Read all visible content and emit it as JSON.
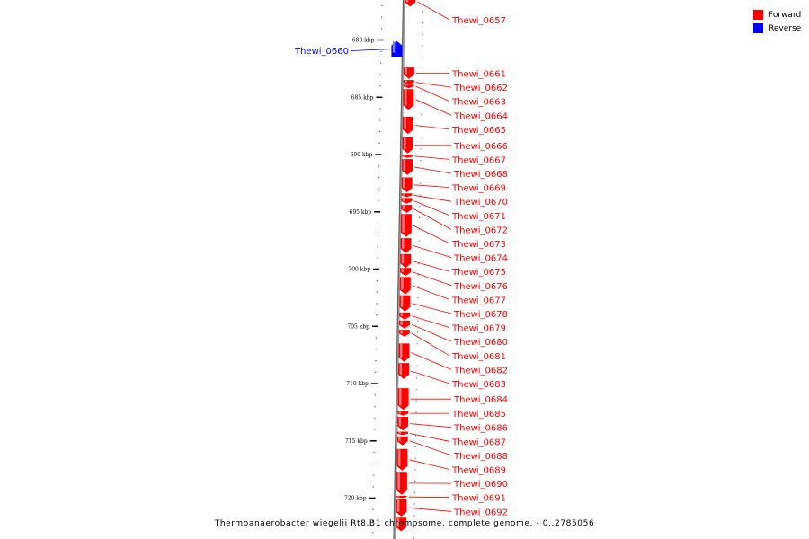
{
  "caption": "Thermoanaerobacter wiegelii Rt8.B1 chromosome, complete genome. - 0..2785056",
  "legend": [
    {
      "label": "Forward",
      "color": "#ff0000"
    },
    {
      "label": "Reverse",
      "color": "#0000ff"
    }
  ],
  "colors": {
    "forward": "#ff0000",
    "reverse": "#0000ff",
    "leader_forward": "#ff0000",
    "leader_reverse": "#0000ff"
  },
  "ticks": [
    {
      "kbp": 680,
      "label": "680 kbp"
    },
    {
      "kbp": 685,
      "label": "685 kbp"
    },
    {
      "kbp": 690,
      "label": "690 kbp"
    },
    {
      "kbp": 695,
      "label": "695 kbp"
    },
    {
      "kbp": 700,
      "label": "700 kbp"
    },
    {
      "kbp": 705,
      "label": "705 kbp"
    },
    {
      "kbp": 710,
      "label": "710 kbp"
    },
    {
      "kbp": 715,
      "label": "715 kbp"
    },
    {
      "kbp": 720,
      "label": "720 kbp"
    }
  ],
  "genes": [
    {
      "name": "Thewi_0657",
      "strand": "forward",
      "start_kbp": 676.2,
      "end_kbp": 677.1
    },
    {
      "name": "Thewi_0660",
      "strand": "reverse",
      "start_kbp": 680.1,
      "end_kbp": 681.5
    },
    {
      "name": "Thewi_0661",
      "strand": "forward",
      "start_kbp": 682.4,
      "end_kbp": 683.4
    },
    {
      "name": "Thewi_0662",
      "strand": "forward",
      "start_kbp": 683.5,
      "end_kbp": 683.9
    },
    {
      "name": "Thewi_0663",
      "strand": "forward",
      "start_kbp": 683.9,
      "end_kbp": 684.2
    },
    {
      "name": "Thewi_0664",
      "strand": "forward",
      "start_kbp": 684.3,
      "end_kbp": 686.1
    },
    {
      "name": "Thewi_0665",
      "strand": "forward",
      "start_kbp": 686.7,
      "end_kbp": 688.2
    },
    {
      "name": "Thewi_0666",
      "strand": "forward",
      "start_kbp": 688.5,
      "end_kbp": 689.9
    },
    {
      "name": "Thewi_0667",
      "strand": "forward",
      "start_kbp": 690.0,
      "end_kbp": 690.3
    },
    {
      "name": "Thewi_0668",
      "strand": "forward",
      "start_kbp": 690.4,
      "end_kbp": 691.8
    },
    {
      "name": "Thewi_0669",
      "strand": "forward",
      "start_kbp": 692.0,
      "end_kbp": 693.3
    },
    {
      "name": "Thewi_0670",
      "strand": "forward",
      "start_kbp": 693.4,
      "end_kbp": 693.7
    },
    {
      "name": "Thewi_0671",
      "strand": "forward",
      "start_kbp": 693.8,
      "end_kbp": 694.3
    },
    {
      "name": "Thewi_0672",
      "strand": "forward",
      "start_kbp": 694.4,
      "end_kbp": 695.1
    },
    {
      "name": "Thewi_0673",
      "strand": "forward",
      "start_kbp": 695.2,
      "end_kbp": 697.2
    },
    {
      "name": "Thewi_0674",
      "strand": "forward",
      "start_kbp": 697.3,
      "end_kbp": 698.6
    },
    {
      "name": "Thewi_0675",
      "strand": "forward",
      "start_kbp": 698.7,
      "end_kbp": 699.9
    },
    {
      "name": "Thewi_0676",
      "strand": "forward",
      "start_kbp": 699.9,
      "end_kbp": 700.6
    },
    {
      "name": "Thewi_0677",
      "strand": "forward",
      "start_kbp": 700.7,
      "end_kbp": 702.2
    },
    {
      "name": "Thewi_0678",
      "strand": "forward",
      "start_kbp": 702.3,
      "end_kbp": 703.7
    },
    {
      "name": "Thewi_0679",
      "strand": "forward",
      "start_kbp": 703.8,
      "end_kbp": 704.4
    },
    {
      "name": "Thewi_0680",
      "strand": "forward",
      "start_kbp": 704.5,
      "end_kbp": 705.2
    },
    {
      "name": "Thewi_0681",
      "strand": "forward",
      "start_kbp": 705.3,
      "end_kbp": 705.9
    },
    {
      "name": "Thewi_0682",
      "strand": "forward",
      "start_kbp": 706.5,
      "end_kbp": 708.1
    },
    {
      "name": "Thewi_0683",
      "strand": "forward",
      "start_kbp": 708.2,
      "end_kbp": 709.6
    },
    {
      "name": "Thewi_0684",
      "strand": "forward",
      "start_kbp": 710.4,
      "end_kbp": 712.3
    },
    {
      "name": "Thewi_0685",
      "strand": "forward",
      "start_kbp": 712.4,
      "end_kbp": 712.8
    },
    {
      "name": "Thewi_0686",
      "strand": "forward",
      "start_kbp": 712.9,
      "end_kbp": 714.1
    },
    {
      "name": "Thewi_0687",
      "strand": "forward",
      "start_kbp": 714.2,
      "end_kbp": 714.5
    },
    {
      "name": "Thewi_0688",
      "strand": "forward",
      "start_kbp": 714.6,
      "end_kbp": 715.4
    },
    {
      "name": "Thewi_0689",
      "strand": "forward",
      "start_kbp": 715.7,
      "end_kbp": 717.6
    },
    {
      "name": "Thewi_0690",
      "strand": "forward",
      "start_kbp": 717.7,
      "end_kbp": 719.7
    },
    {
      "name": "Thewi_0691",
      "strand": "forward",
      "start_kbp": 719.8,
      "end_kbp": 720.0
    },
    {
      "name": "Thewi_0692",
      "strand": "forward",
      "start_kbp": 720.1,
      "end_kbp": 721.6
    },
    {
      "name": "",
      "strand": "forward",
      "start_kbp": 721.7,
      "end_kbp": 722.9
    }
  ]
}
